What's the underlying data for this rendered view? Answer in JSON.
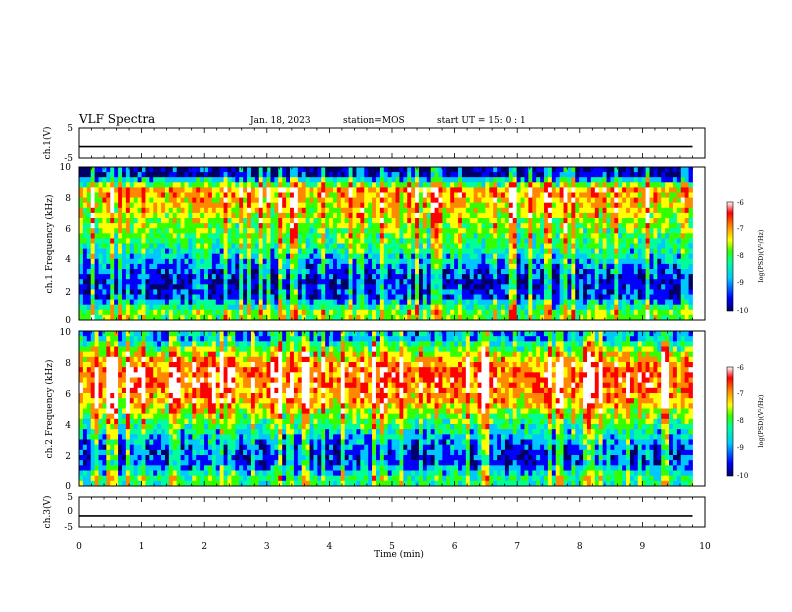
{
  "header": {
    "title": "VLF Spectra",
    "date": "Jan. 18, 2023",
    "station": "station=MOS",
    "start": "start UT =  15: 0  : 1"
  },
  "colors": {
    "colormap": [
      "#000066",
      "#0000ff",
      "#00c8ff",
      "#00ff99",
      "#33ff00",
      "#ffff00",
      "#ff8800",
      "#ff0000",
      "#ffffff"
    ]
  },
  "chart_data": [
    {
      "type": "line",
      "name": "ch1-voltage",
      "ylabel": "ch.1(V)",
      "ylim": [
        -5,
        5
      ],
      "yticks": [
        "5",
        "-5"
      ],
      "xlim": [
        0,
        10
      ],
      "x": [
        0,
        1,
        2,
        3,
        4,
        5,
        6,
        7,
        8,
        9,
        9.8
      ],
      "y": [
        -1.2,
        -1.2,
        -1.2,
        -1.2,
        -1.2,
        -1.2,
        -1.2,
        -1.2,
        -1.2,
        -1.2,
        -1.2
      ]
    },
    {
      "type": "heatmap",
      "name": "ch1-spectrogram",
      "ylabel": "ch.1 Frequency (kHz)",
      "ylim": [
        0,
        10
      ],
      "yticks": [
        "0",
        "2",
        "4",
        "6",
        "8",
        "10"
      ],
      "xlim": [
        0,
        10
      ],
      "data_end_min": 9.8,
      "colorbar_label": "log(PSD)(V²/Hz)",
      "colorbar_ticks": [
        "-6",
        "-7",
        "-8",
        "-9",
        "-10"
      ],
      "clim": [
        -10,
        -6
      ],
      "frequency_kHz": [
        0.5,
        1.5,
        2.5,
        3.5,
        4.5,
        5.5,
        6.5,
        7.5,
        8.5,
        9.5
      ],
      "mean_logpsd": [
        -7.8,
        -9.2,
        -9.5,
        -9.0,
        -8.4,
        -8.0,
        -7.6,
        -7.2,
        -6.9,
        -9.6
      ]
    },
    {
      "type": "heatmap",
      "name": "ch2-spectrogram",
      "ylabel": "ch.2 Frequency (kHz)",
      "ylim": [
        0,
        10
      ],
      "yticks": [
        "0",
        "2",
        "4",
        "6",
        "8",
        "10"
      ],
      "xlim": [
        0,
        10
      ],
      "data_end_min": 9.8,
      "colorbar_label": "log(PSD)(V²/Hz)",
      "colorbar_ticks": [
        "-6",
        "-7",
        "-8",
        "-9",
        "-10"
      ],
      "clim": [
        -10,
        -6
      ],
      "frequency_kHz": [
        0.5,
        1.5,
        2.5,
        3.5,
        4.5,
        5.5,
        6.5,
        7.5,
        8.5,
        9.5
      ],
      "mean_logpsd": [
        -8.2,
        -9.3,
        -9.2,
        -8.5,
        -7.8,
        -7.0,
        -6.6,
        -6.6,
        -7.4,
        -8.8
      ]
    },
    {
      "type": "line",
      "name": "ch3-voltage",
      "ylabel": "ch.3(V)",
      "ylim": [
        -5,
        5
      ],
      "yticks": [
        "5",
        "0",
        "-5"
      ],
      "xlim": [
        0,
        10
      ],
      "x": [
        0,
        1,
        2,
        3,
        4,
        5,
        6,
        7,
        8,
        9,
        9.8
      ],
      "y": [
        -1.3,
        -1.3,
        -1.3,
        -1.3,
        -1.3,
        -1.3,
        -1.3,
        -1.3,
        -1.3,
        -1.3,
        -1.3
      ]
    }
  ],
  "xaxis": {
    "label": "Time (min)",
    "ticks": [
      "0",
      "1",
      "2",
      "3",
      "4",
      "5",
      "6",
      "7",
      "8",
      "9",
      "10"
    ]
  }
}
